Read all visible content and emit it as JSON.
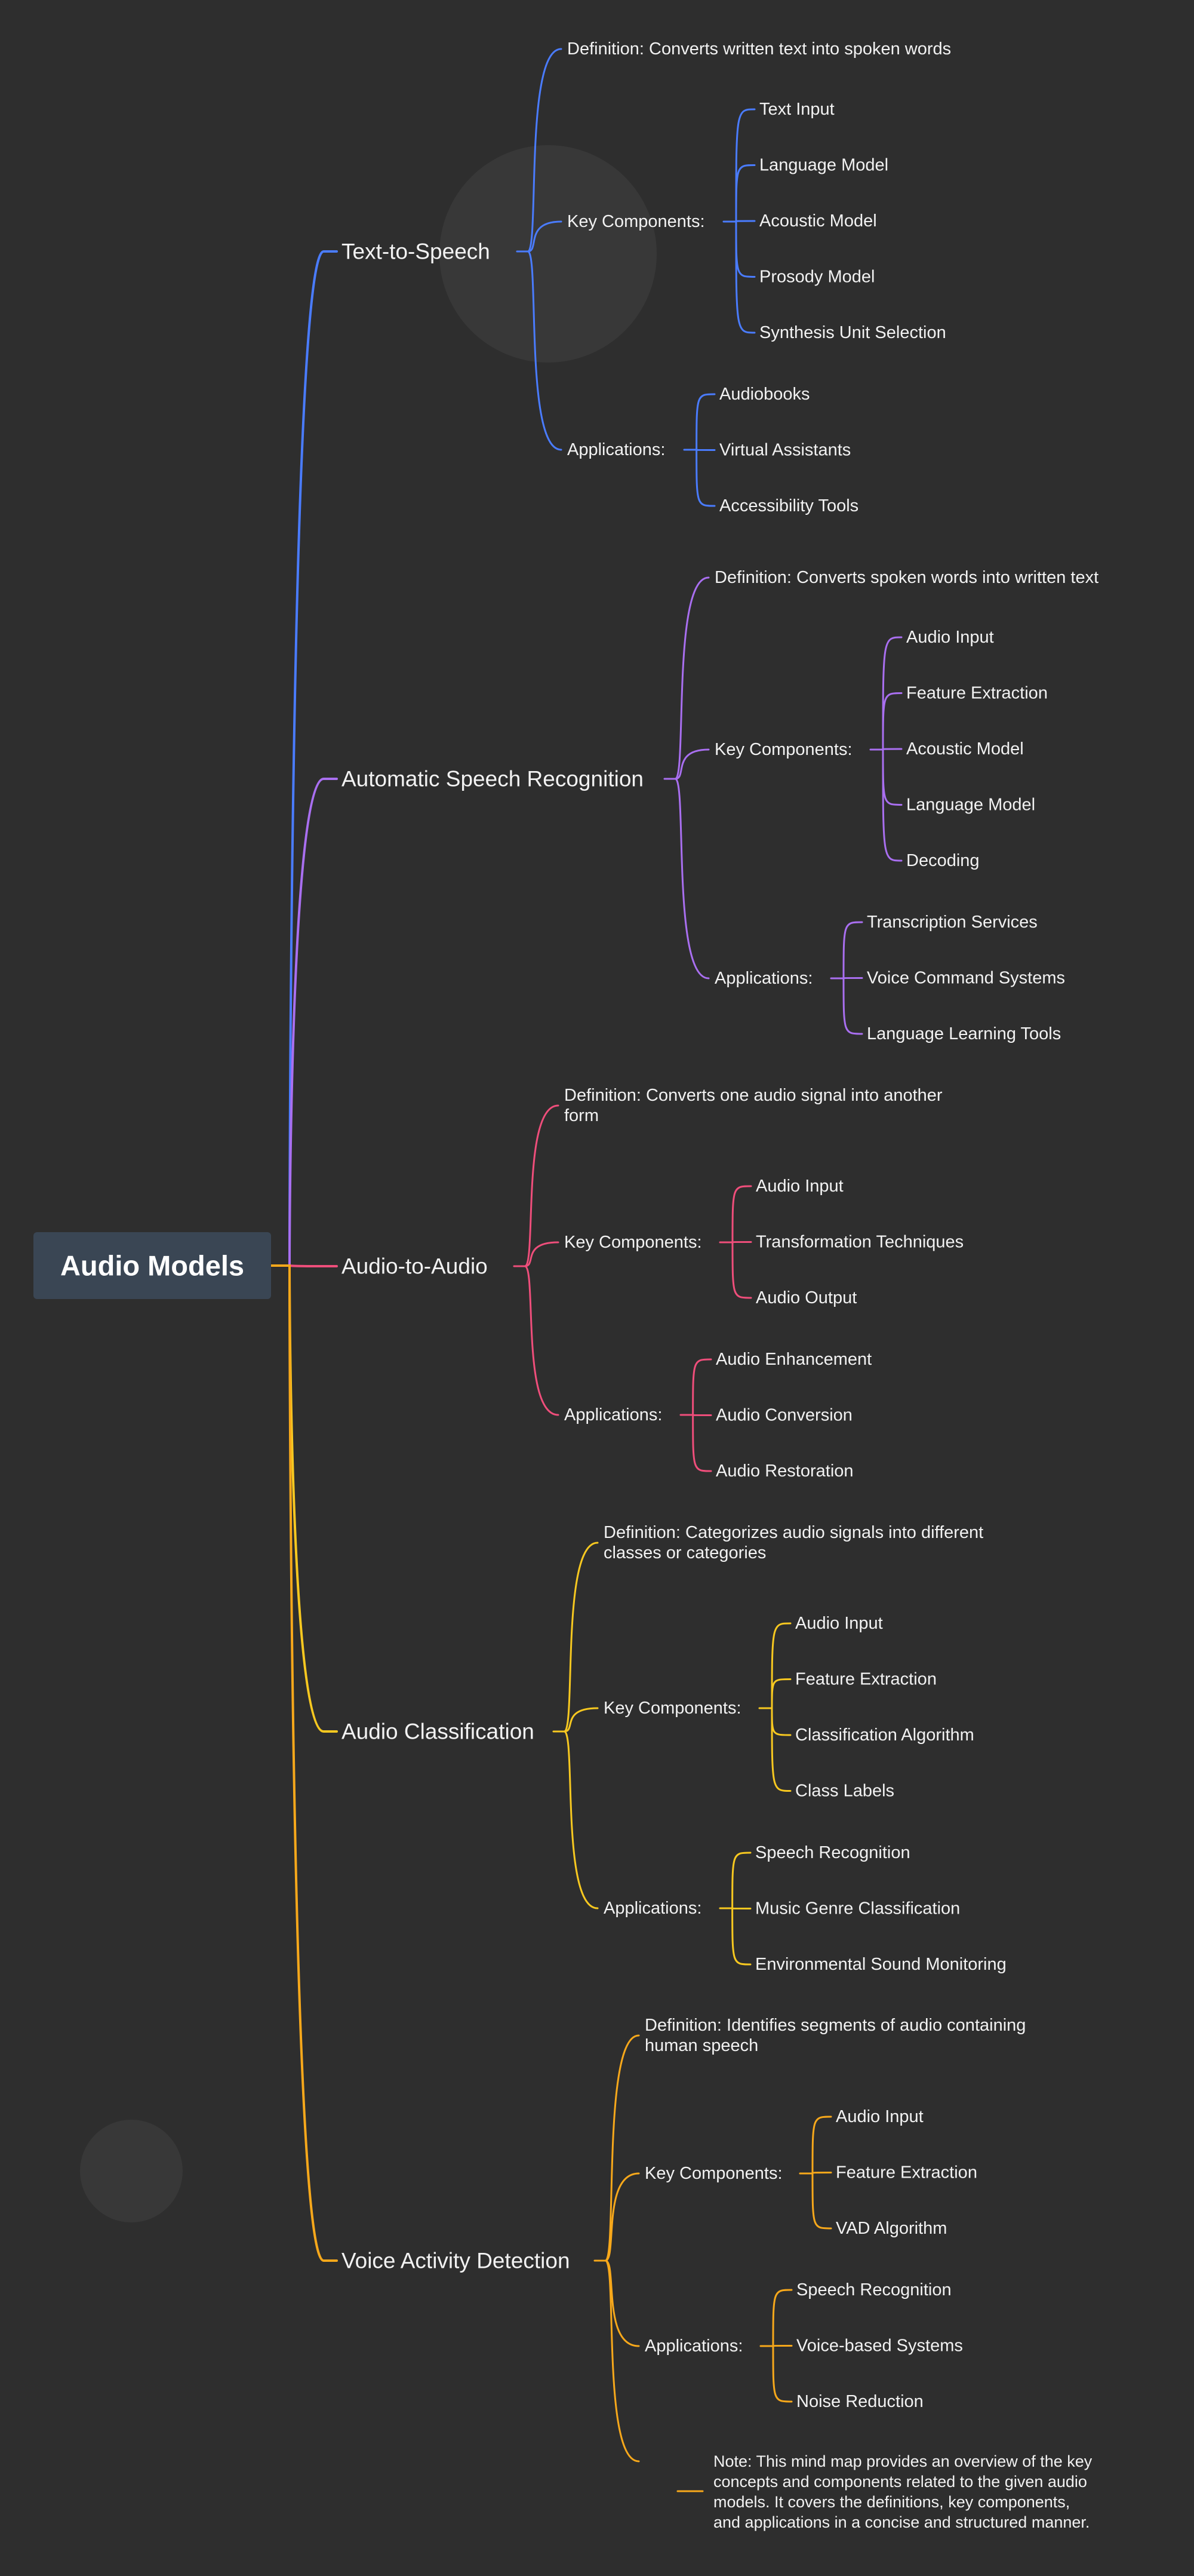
{
  "root": {
    "label": "Audio Models"
  },
  "branches": [
    {
      "label": "Text-to-Speech",
      "color": "#4a7cff",
      "definition": [
        "Definition: Converts written text into spoken words"
      ],
      "components_label": "Key Components:",
      "components": [
        "Text Input",
        "Language Model",
        "Acoustic Model",
        "Prosody Model",
        "Synthesis Unit Selection"
      ],
      "applications_label": "Applications:",
      "applications": [
        "Audiobooks",
        "Virtual Assistants",
        "Accessibility Tools"
      ]
    },
    {
      "label": "Automatic Speech Recognition",
      "color": "#a96ff0",
      "definition": [
        "Definition: Converts spoken words into written text"
      ],
      "components_label": "Key Components:",
      "components": [
        "Audio Input",
        "Feature Extraction",
        "Acoustic Model",
        "Language Model",
        "Decoding"
      ],
      "applications_label": "Applications:",
      "applications": [
        "Transcription Services",
        "Voice Command Systems",
        "Language Learning Tools"
      ]
    },
    {
      "label": "Audio-to-Audio",
      "color": "#ef4e7b",
      "definition": [
        "Definition: Converts one audio signal into another",
        "form"
      ],
      "components_label": "Key Components:",
      "components": [
        "Audio Input",
        "Transformation Techniques",
        "Audio Output"
      ],
      "applications_label": "Applications:",
      "applications": [
        "Audio Enhancement",
        "Audio Conversion",
        "Audio Restoration"
      ]
    },
    {
      "label": "Audio Classification",
      "color": "#f7c820",
      "definition": [
        "Definition: Categorizes audio signals into different",
        "classes or categories"
      ],
      "components_label": "Key Components:",
      "components": [
        "Audio Input",
        "Feature Extraction",
        "Classification Algorithm",
        "Class Labels"
      ],
      "applications_label": "Applications:",
      "applications": [
        "Speech Recognition",
        "Music Genre Classification",
        "Environmental Sound Monitoring"
      ]
    },
    {
      "label": "Voice Activity Detection",
      "color": "#f7a81b",
      "definition": [
        "Definition: Identifies segments of audio containing",
        "human speech"
      ],
      "components_label": "Key Components:",
      "components": [
        "Audio Input",
        "Feature Extraction",
        "VAD Algorithm"
      ],
      "applications_label": "Applications:",
      "applications": [
        "Speech Recognition",
        "Voice-based Systems",
        "Noise Reduction"
      ],
      "note": [
        "Note: This mind map provides an overview of the key",
        "concepts and components related to the given audio",
        "models. It covers the definitions, key components,",
        "and applications in a concise and structured manner."
      ]
    }
  ]
}
